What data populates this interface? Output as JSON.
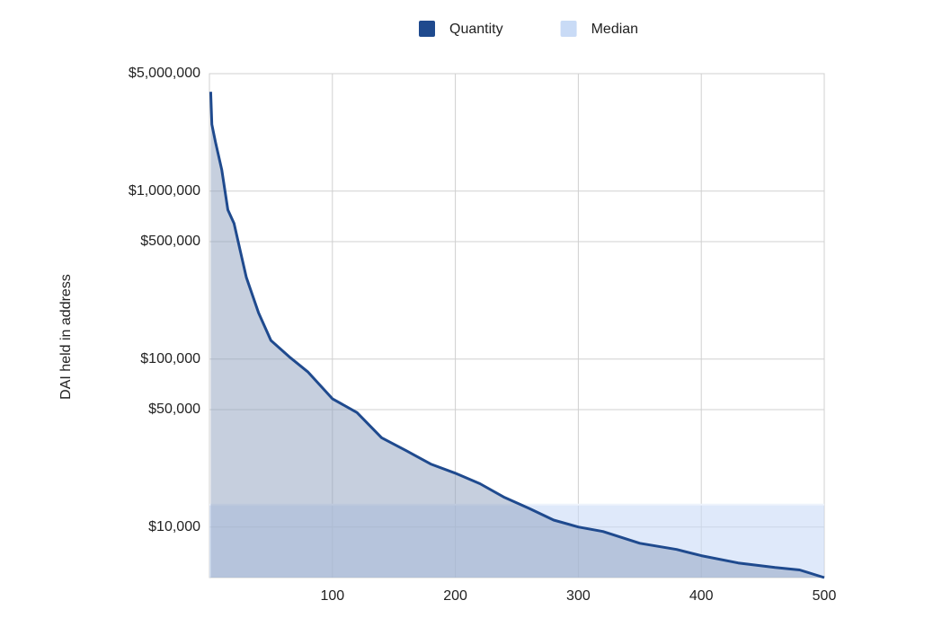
{
  "chart_data": {
    "type": "area",
    "y_label": "DAI held in address",
    "x": [
      1,
      2,
      5,
      10,
      15,
      20,
      25,
      30,
      40,
      50,
      65,
      80,
      100,
      120,
      140,
      160,
      180,
      200,
      220,
      240,
      260,
      280,
      300,
      320,
      350,
      380,
      400,
      430,
      460,
      480,
      500
    ],
    "series": [
      {
        "name": "Quantity",
        "color": "#1f4a8e",
        "values": [
          3900000,
          2490000,
          1950000,
          1340000,
          773000,
          641000,
          443000,
          307000,
          188000,
          129000,
          103000,
          84000,
          58000,
          48000,
          34000,
          28500,
          23700,
          20900,
          18100,
          15000,
          12900,
          11000,
          10000,
          9400,
          8000,
          7350,
          6750,
          6110,
          5740,
          5550,
          5000
        ]
      },
      {
        "name": "Median",
        "color": "#c9dbf6",
        "values": [
          13600,
          13600,
          13600,
          13600,
          13600,
          13600,
          13600,
          13600,
          13600,
          13600,
          13600,
          13600,
          13600,
          13600,
          13600,
          13600,
          13600,
          13600,
          13600,
          13600,
          13600,
          13600,
          13600,
          13600,
          13600,
          13600,
          13600,
          13600,
          13600,
          13600,
          13600
        ]
      }
    ],
    "xlim": [
      0,
      500
    ],
    "xticks": [
      100,
      200,
      300,
      400,
      500
    ],
    "ylim": [
      5000,
      5000000
    ],
    "log_y": true,
    "yticks": [
      {
        "value": 10000,
        "label": "$10,000"
      },
      {
        "value": 50000,
        "label": "$50,000"
      },
      {
        "value": 100000,
        "label": "$100,000"
      },
      {
        "value": 500000,
        "label": "$500,000"
      },
      {
        "value": 1000000,
        "label": "$1,000,000"
      },
      {
        "value": 5000000,
        "label": "$5,000,000"
      }
    ],
    "grid": true
  }
}
